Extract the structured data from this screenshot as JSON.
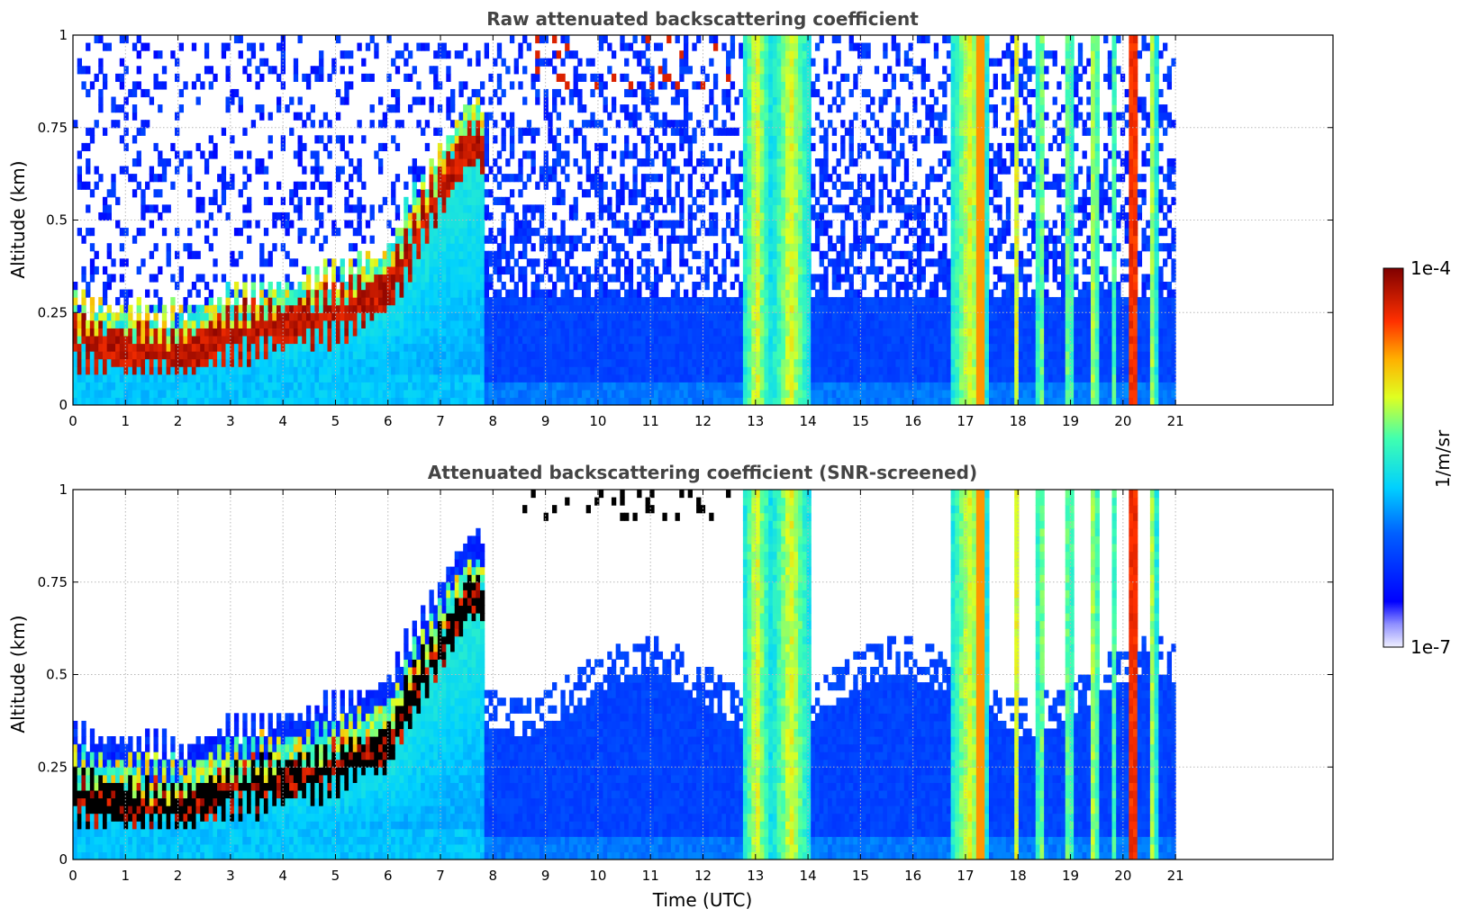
{
  "chart_data": [
    {
      "type": "heatmap",
      "title": "Raw attenuated backscattering coefficient",
      "xlabel": "",
      "ylabel": "Altitude (km)",
      "xlim": [
        0,
        24
      ],
      "ylim": [
        0,
        1
      ],
      "x_ticks": [
        "0",
        "1",
        "2",
        "3",
        "4",
        "5",
        "6",
        "7",
        "8",
        "9",
        "10",
        "11",
        "12",
        "13",
        "14",
        "15",
        "16",
        "17",
        "18",
        "19",
        "20",
        "21"
      ],
      "y_ticks": [
        "0",
        "0.25",
        "0.5",
        "0.75",
        "1"
      ],
      "grid": true,
      "data_end_time": 21,
      "screened": false,
      "features": {
        "boundary_layer_top_km": [
          {
            "t": 0,
            "z": 0.22
          },
          {
            "t": 1,
            "z": 0.2
          },
          {
            "t": 2,
            "z": 0.18
          },
          {
            "t": 3,
            "z": 0.24
          },
          {
            "t": 4,
            "z": 0.26
          },
          {
            "t": 5,
            "z": 0.3
          },
          {
            "t": 6,
            "z": 0.36
          },
          {
            "t": 6.5,
            "z": 0.5
          },
          {
            "t": 7,
            "z": 0.62
          },
          {
            "t": 7.5,
            "z": 0.75
          }
        ],
        "precipitation_columns_utc": [
          [
            12.75,
            13.3
          ],
          [
            13.3,
            14.05
          ],
          [
            16.7,
            17.45
          ],
          [
            17.9,
            18.05
          ],
          [
            18.35,
            18.5
          ],
          [
            18.9,
            19.05
          ],
          [
            19.35,
            19.55
          ],
          [
            19.75,
            19.85
          ],
          [
            20.1,
            20.3
          ],
          [
            20.5,
            20.65
          ]
        ]
      }
    },
    {
      "type": "heatmap",
      "title": "Attenuated backscattering coefficient (SNR-screened)",
      "xlabel": "Time (UTC)",
      "ylabel": "Altitude (km)",
      "xlim": [
        0,
        24
      ],
      "ylim": [
        0,
        1
      ],
      "x_ticks": [
        "0",
        "1",
        "2",
        "3",
        "4",
        "5",
        "6",
        "7",
        "8",
        "9",
        "10",
        "11",
        "12",
        "13",
        "14",
        "15",
        "16",
        "17",
        "18",
        "19",
        "20",
        "21"
      ],
      "y_ticks": [
        "0",
        "0.25",
        "0.5",
        "0.75",
        "1"
      ],
      "grid": true,
      "data_end_time": 21,
      "screened": true
    }
  ],
  "colorbar": {
    "label": "1/m/sr",
    "max_label": "1e-4",
    "min_label": "1e-7",
    "scale": "log",
    "range": [
      1e-07,
      0.0001
    ],
    "colormap": "jet"
  }
}
